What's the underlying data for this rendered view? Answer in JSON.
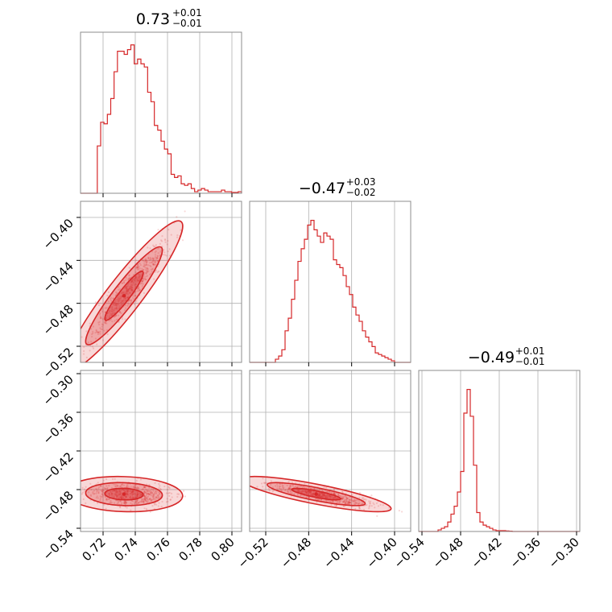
{
  "chart_data": {
    "type": "corner",
    "color": "#d62728",
    "titles": [
      {
        "value": "0.73",
        "upper": "+0.01",
        "lower": "−0.01"
      },
      {
        "value": "−0.47",
        "upper": "+0.03",
        "lower": "−0.02"
      },
      {
        "value": "−0.49",
        "upper": "+0.01",
        "lower": "−0.01"
      }
    ],
    "params": [
      {
        "range": [
          0.706,
          0.806
        ],
        "ticks": [
          0.72,
          0.74,
          0.76,
          0.78,
          0.8
        ],
        "tick_labels": [
          "0.72",
          "0.74",
          "0.76",
          "0.78",
          "0.80"
        ]
      },
      {
        "range": [
          -0.535,
          -0.385
        ],
        "ticks": [
          -0.52,
          -0.48,
          -0.44,
          -0.4
        ],
        "tick_labels": [
          "−0.52",
          "−0.48",
          "−0.44",
          "−0.40"
        ]
      },
      {
        "range": [
          -0.545,
          -0.295
        ],
        "ticks": [
          -0.54,
          -0.48,
          -0.42,
          -0.36,
          -0.3
        ],
        "tick_labels": [
          "−0.54",
          "−0.48",
          "−0.42",
          "−0.36",
          "−0.30"
        ]
      }
    ],
    "histograms": [
      {
        "counts": [
          0,
          0,
          0,
          0,
          0,
          0.3,
          0.45,
          0.44,
          0.5,
          0.6,
          0.77,
          0.9,
          0.9,
          0.88,
          0.91,
          0.94,
          0.82,
          0.85,
          0.82,
          0.8,
          0.64,
          0.58,
          0.43,
          0.4,
          0.33,
          0.28,
          0.25,
          0.12,
          0.1,
          0.11,
          0.06,
          0.05,
          0.06,
          0.03,
          0.01,
          0.02,
          0.03,
          0.02,
          0.01,
          0.01,
          0.01,
          0.01,
          0.02,
          0.01,
          0.01,
          0.005,
          0.005,
          0.01
        ]
      },
      {
        "counts": [
          0,
          0,
          0,
          0,
          0,
          0,
          0,
          0,
          0.02,
          0.04,
          0.08,
          0.2,
          0.28,
          0.4,
          0.52,
          0.64,
          0.72,
          0.78,
          0.87,
          0.9,
          0.84,
          0.8,
          0.76,
          0.82,
          0.8,
          0.78,
          0.65,
          0.62,
          0.6,
          0.55,
          0.48,
          0.43,
          0.35,
          0.3,
          0.26,
          0.2,
          0.16,
          0.13,
          0.1,
          0.06,
          0.05,
          0.04,
          0.03,
          0.02,
          0.01,
          0,
          0,
          0,
          0,
          0
        ]
      },
      {
        "counts": [
          0,
          0,
          0,
          0,
          0,
          0,
          0.01,
          0.02,
          0.03,
          0.06,
          0.11,
          0.16,
          0.25,
          0.38,
          0.75,
          0.9,
          0.73,
          0.42,
          0.12,
          0.06,
          0.04,
          0.03,
          0.02,
          0.01,
          0.005,
          0.005,
          0.005,
          0.003,
          0.002,
          0,
          0,
          0,
          0,
          0,
          0,
          0,
          0,
          0,
          0,
          0,
          0,
          0,
          0,
          0,
          0,
          0,
          0,
          0,
          0,
          0
        ]
      }
    ],
    "pairs": [
      {
        "x": 0,
        "y": 1,
        "center": [
          0.733,
          -0.473
        ],
        "sd": [
          0.012,
          0.023
        ],
        "corr": 0.93
      },
      {
        "x": 0,
        "y": 2,
        "center": [
          0.733,
          -0.487
        ],
        "sd": [
          0.012,
          0.009
        ],
        "corr": -0.1
      },
      {
        "x": 1,
        "y": 2,
        "center": [
          -0.473,
          -0.487
        ],
        "sd": [
          0.023,
          0.009
        ],
        "corr": -0.82
      }
    ],
    "contour_levels": [
      0.39,
      0.86,
      0.99
    ],
    "grid": true
  }
}
